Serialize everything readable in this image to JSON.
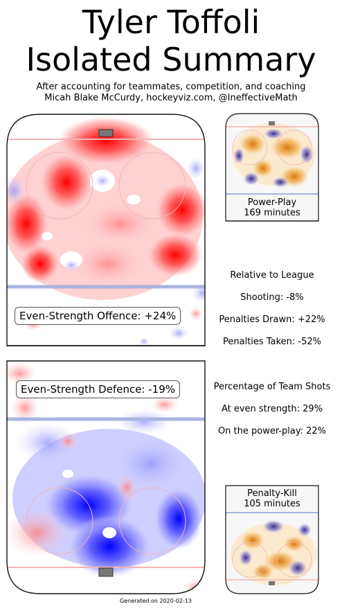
{
  "header": {
    "title_line1": "Tyler Toffoli",
    "title_line2": "Isolated Summary",
    "subtitle_line1": "After accounting for teammates, competition, and coaching",
    "subtitle_line2": "Micah Blake McCurdy, hockeyviz.com, @IneffectiveMath"
  },
  "panels": {
    "offence_label": "Even-Strength Offence: +24%",
    "defence_label": "Even-Strength Defence: -19%",
    "powerplay_label": "Power-Play",
    "powerplay_minutes": "169 minutes",
    "penaltykill_label": "Penalty-Kill",
    "penaltykill_minutes": "105 minutes"
  },
  "stats": {
    "relative_heading": "Relative to League",
    "shooting": "Shooting: -8%",
    "penalties_drawn": "Penalties Drawn: +22%",
    "penalties_taken": "Penalties Taken: -52%",
    "team_shots_heading": "Percentage of Team Shots",
    "even_strength": "At even strength: 29%",
    "power_play": "On the power-play: 22%"
  },
  "footer": {
    "generated": "Generated on 2020-02-13"
  },
  "colors": {
    "offence_positive": "#ff0000",
    "defence_negative": "#0000ff",
    "pp_positive": "#e8901a",
    "pp_negative": "#3a2a8c",
    "rink_line_blue": "#aab4dd",
    "rink_line_red": "#f4b4b4"
  },
  "chart_data": [
    {
      "type": "heatmap",
      "name": "Even-Strength Offence",
      "summary_value": "+24%",
      "hotspots": [
        {
          "zone": "high slot / point area",
          "level": 1.0,
          "sign": "positive"
        },
        {
          "zone": "left circle",
          "level": 0.85,
          "sign": "positive"
        },
        {
          "zone": "right circle",
          "level": 0.8,
          "sign": "positive"
        },
        {
          "zone": "left boards",
          "level": 0.75,
          "sign": "positive"
        },
        {
          "zone": "right faceoff",
          "level": 0.7,
          "sign": "positive"
        },
        {
          "zone": "slot (centre)",
          "level": 0.35,
          "sign": "negative"
        }
      ]
    },
    {
      "type": "heatmap",
      "name": "Even-Strength Defence",
      "summary_value": "-19%",
      "hotspots": [
        {
          "zone": "net front",
          "level": 1.0,
          "sign": "negative"
        },
        {
          "zone": "left slot",
          "level": 0.9,
          "sign": "negative"
        },
        {
          "zone": "right circle",
          "level": 0.6,
          "sign": "negative"
        },
        {
          "zone": "left circle",
          "level": 0.55,
          "sign": "positive"
        }
      ]
    },
    {
      "type": "heatmap",
      "name": "Power-Play",
      "minutes": 169,
      "hotspots": [
        {
          "zone": "right point",
          "level": 0.8,
          "sign": "positive"
        },
        {
          "zone": "slot",
          "level": 0.6,
          "sign": "negative"
        }
      ]
    },
    {
      "type": "heatmap",
      "name": "Penalty-Kill",
      "minutes": 105,
      "hotspots": [
        {
          "zone": "low slot",
          "level": 0.8,
          "sign": "positive"
        },
        {
          "zone": "right circle",
          "level": 0.6,
          "sign": "negative"
        }
      ]
    }
  ]
}
